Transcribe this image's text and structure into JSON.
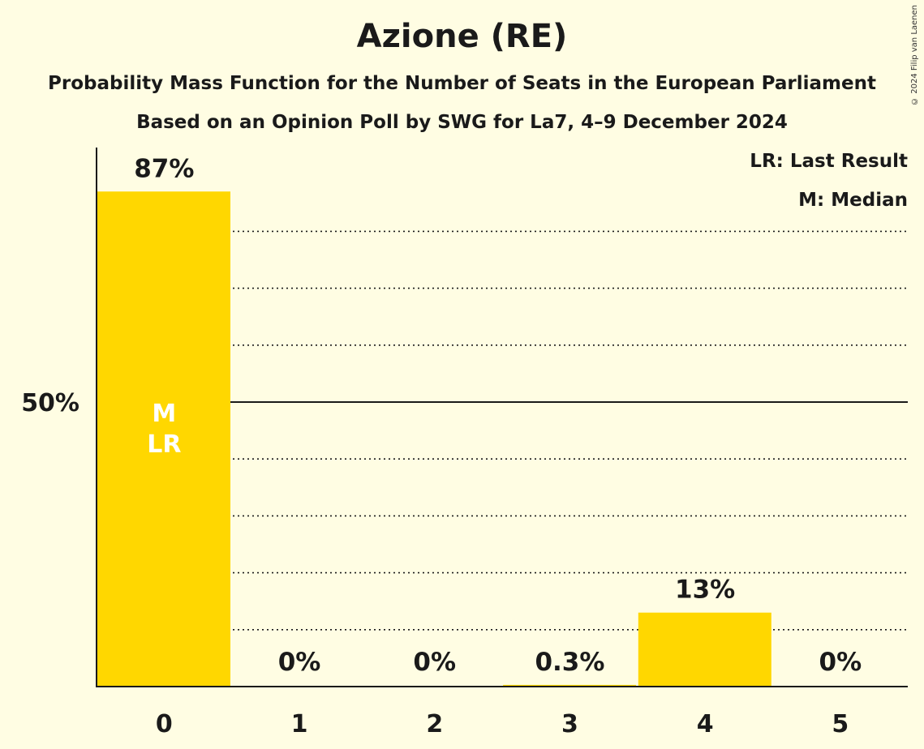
{
  "copyright": "© 2024 Filip van Laenen",
  "legend": {
    "last_result": "LR: Last Result",
    "median": "M: Median"
  },
  "colors": {
    "background": "#FFFDE3",
    "bar": "#FFD700",
    "text": "#1a1a1a"
  },
  "chart_data": {
    "type": "bar",
    "title": "Azione (RE)",
    "subtitle": "Probability Mass Function for the Number of Seats in the European Parliament",
    "subtitle2": "Based on an Opinion Poll by SWG for La7, 4–9 December 2024",
    "xlabel": "",
    "ylabel": "",
    "categories": [
      "0",
      "1",
      "2",
      "3",
      "4",
      "5"
    ],
    "values": [
      87,
      0,
      0,
      0.3,
      13,
      0
    ],
    "data_labels": [
      "87%",
      "0%",
      "0%",
      "0.3%",
      "13%",
      "0%"
    ],
    "ylim": [
      0,
      95
    ],
    "y_ticks": [
      {
        "value": 50,
        "label": "50%"
      }
    ],
    "gridlines_dotted": [
      10,
      20,
      30,
      40,
      60,
      70,
      80
    ],
    "gridline_solid": 50,
    "bar_markers": [
      {
        "category": "0",
        "lines": [
          "M",
          "LR"
        ]
      }
    ]
  }
}
